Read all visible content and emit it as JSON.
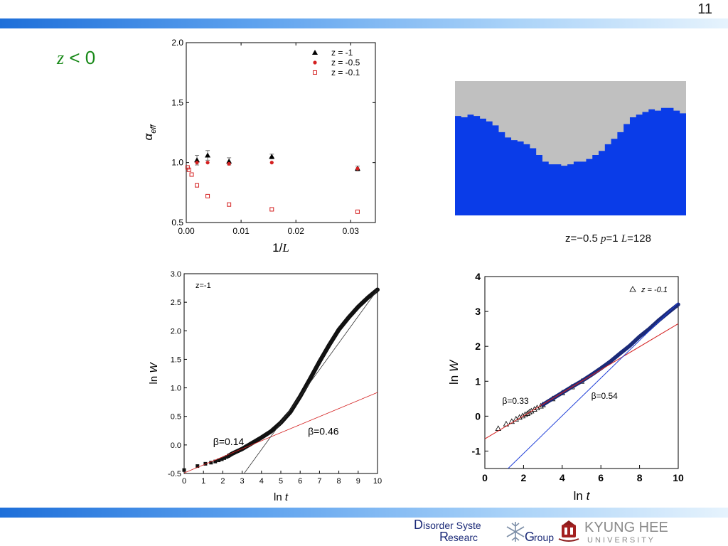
{
  "slide": {
    "number": "11",
    "condition": {
      "var": "z",
      "rest": " < 0"
    },
    "snapshot_caption": {
      "z": "z=−0.5 ",
      "p_var": "p",
      "p_rest": "=1 ",
      "L_var": "L",
      "L_rest": "=128"
    },
    "footer": {
      "dsrg_line1_big": "D",
      "dsrg_line1_rest": "isorder Syste",
      "dsrg_line2_big": "R",
      "dsrg_line2_mid": "esearc",
      "dsrg_line2_big2": "G",
      "dsrg_line2_rest": "roup",
      "khu_name": "KYUNG HEE",
      "khu_sub": "U N I V E R S I T Y"
    }
  },
  "colors": {
    "band_start": "#1e6fd9",
    "condition_green": "#1a8a1a",
    "sky": "#c0c0c0",
    "surface_blue": "#0a3ce8",
    "red": "#d42020",
    "navy": "#1b2a78",
    "fit_blue": "#1f3fd8"
  },
  "chart_data": [
    {
      "id": "alpha-eff",
      "type": "scatter",
      "xlabel_main": "1/",
      "xlabel_var": "L",
      "ylabel_main": "α",
      "ylabel_sub": "eff",
      "xlim": [
        0.0,
        0.0345
      ],
      "ylim": [
        0.5,
        2.0
      ],
      "xticks": [
        0.0,
        0.01,
        0.02,
        0.03
      ],
      "xtick_labels": [
        "0.00",
        "0.01",
        "0.02",
        "0.03"
      ],
      "yticks": [
        0.5,
        1.0,
        1.5,
        2.0
      ],
      "ytick_labels": [
        "0.5",
        "1.0",
        "1.5",
        "2.0"
      ],
      "legend_position": "top-right",
      "series": [
        {
          "name": "z = -1",
          "marker": "triangle",
          "color": "#000000",
          "x": [
            0.00195,
            0.0039,
            0.0078,
            0.0156,
            0.03125
          ],
          "y": [
            1.02,
            1.06,
            1.01,
            1.05,
            0.95
          ],
          "err": [
            0.04,
            0.04,
            0.03,
            0.02,
            0.02
          ]
        },
        {
          "name": "z = -0.5",
          "marker": "dot",
          "color": "#d42020",
          "x": [
            0.00195,
            0.0039,
            0.0078,
            0.0156,
            0.03125
          ],
          "y": [
            1.0,
            1.0,
            0.99,
            1.0,
            0.95
          ],
          "err": [
            0,
            0,
            0,
            0,
            0
          ]
        },
        {
          "name": "z = -0.1",
          "marker": "square-open",
          "color": "#d42020",
          "x": [
            0.00024,
            0.00049,
            0.00098,
            0.00195,
            0.0039,
            0.0078,
            0.0156,
            0.03125
          ],
          "y": [
            0.96,
            0.94,
            0.9,
            0.81,
            0.72,
            0.65,
            0.61,
            0.59
          ],
          "err": [
            0,
            0,
            0,
            0,
            0,
            0,
            0,
            0
          ]
        }
      ]
    },
    {
      "id": "lnW-z-1",
      "type": "line",
      "annotation": "z=-1",
      "xlabel_main": "ln",
      "xlabel_var": "t",
      "ylabel_main": "ln",
      "ylabel_var": "W",
      "xlim": [
        0,
        10
      ],
      "ylim": [
        -0.5,
        3.0
      ],
      "xticks": [
        0,
        1,
        2,
        3,
        4,
        5,
        6,
        7,
        8,
        9,
        10
      ],
      "yticks": [
        -0.5,
        0.0,
        0.5,
        1.0,
        1.5,
        2.0,
        2.5,
        3.0
      ],
      "ytick_labels": [
        "-0.5",
        "0.0",
        "0.5",
        "1.0",
        "1.5",
        "2.0",
        "2.5",
        "3.0"
      ],
      "data_curve": {
        "x": [
          0.0,
          0.69,
          1.1,
          1.39,
          1.61,
          1.79,
          1.95,
          2.08,
          2.2,
          2.3,
          2.5,
          3.0,
          3.5,
          4.0,
          4.5,
          5.0,
          5.5,
          6.0,
          6.5,
          7.0,
          7.5,
          8.0,
          8.5,
          9.0,
          9.5,
          10.0
        ],
        "y": [
          -0.44,
          -0.37,
          -0.33,
          -0.31,
          -0.29,
          -0.27,
          -0.25,
          -0.23,
          -0.21,
          -0.19,
          -0.15,
          -0.07,
          0.03,
          0.13,
          0.24,
          0.39,
          0.58,
          0.85,
          1.15,
          1.46,
          1.75,
          2.02,
          2.23,
          2.42,
          2.58,
          2.72
        ]
      },
      "fits": [
        {
          "label": "β=0.14",
          "color": "#d42020",
          "x": [
            0,
            10
          ],
          "y": [
            -0.49,
            0.92
          ],
          "label_pos": [
            1.5,
            0.0
          ]
        },
        {
          "label": "β=0.46",
          "color": "#333333",
          "x": [
            3.1,
            10
          ],
          "y": [
            -0.5,
            2.72
          ],
          "label_pos": [
            6.4,
            0.18
          ]
        }
      ]
    },
    {
      "id": "lnW-z-0.1",
      "type": "scatter",
      "legend": "z = -0.1",
      "xlabel_main": "ln",
      "xlabel_var": "t",
      "ylabel_main": "ln",
      "ylabel_var": "W",
      "xlim": [
        0,
        10
      ],
      "ylim": [
        -1.5,
        4
      ],
      "xticks": [
        0,
        2,
        4,
        6,
        8,
        10
      ],
      "yticks": [
        -1,
        0,
        1,
        2,
        3,
        4
      ],
      "data_curve": {
        "x": [
          0.69,
          1.1,
          1.39,
          1.61,
          1.79,
          1.95,
          2.08,
          2.2,
          2.3,
          2.4,
          2.56,
          2.7,
          2.89,
          3.0,
          3.5,
          4.0,
          4.5,
          5.0,
          5.5,
          6.0,
          6.5,
          7.0,
          7.5,
          8.0,
          8.5,
          9.0,
          9.5,
          10.0
        ],
        "y": [
          -0.35,
          -0.22,
          -0.15,
          -0.08,
          -0.03,
          0.01,
          0.05,
          0.08,
          0.12,
          0.15,
          0.2,
          0.24,
          0.29,
          0.33,
          0.5,
          0.67,
          0.84,
          1.0,
          1.18,
          1.37,
          1.57,
          1.8,
          2.02,
          2.28,
          2.5,
          2.75,
          2.98,
          3.2
        ]
      },
      "fits": [
        {
          "label": "β=0.33",
          "color": "#d42020",
          "x": [
            0,
            10
          ],
          "y": [
            -0.65,
            2.65
          ],
          "label_pos": [
            0.9,
            0.35
          ]
        },
        {
          "label": "β=0.54",
          "color": "#1f3fd8",
          "x": [
            1.2,
            10
          ],
          "y": [
            -1.5,
            3.25
          ],
          "label_pos": [
            5.5,
            0.5
          ]
        }
      ]
    }
  ]
}
